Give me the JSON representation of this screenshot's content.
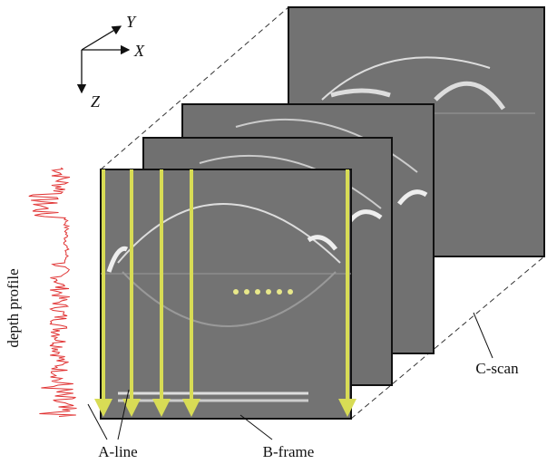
{
  "axes": {
    "y": "Y",
    "x": "X",
    "z": "Z"
  },
  "labels": {
    "depth_profile": "depth profile",
    "a_line": "A-line",
    "b_frame": "B-frame",
    "c_scan": "C-scan"
  }
}
